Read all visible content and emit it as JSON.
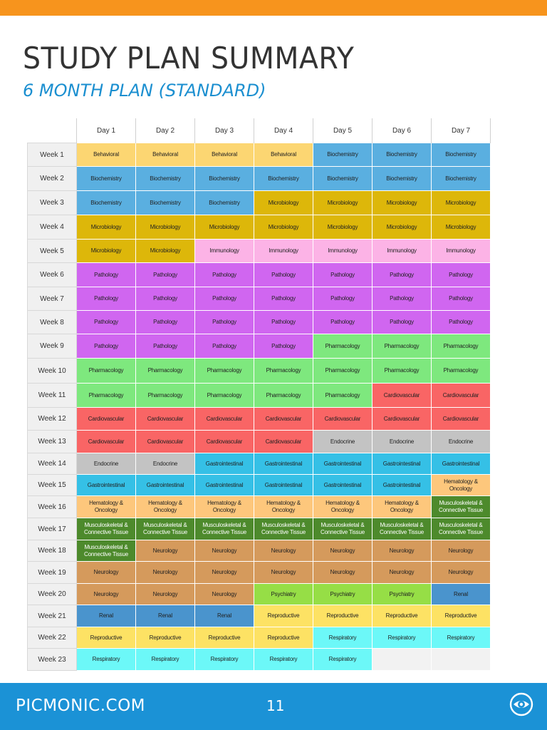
{
  "header": {
    "title": "STUDY PLAN SUMMARY",
    "subtitle": "6 MONTH PLAN (STANDARD)"
  },
  "table": {
    "columns": [
      "Day 1",
      "Day 2",
      "Day 3",
      "Day 4",
      "Day 5",
      "Day 6",
      "Day 7"
    ],
    "rows": [
      {
        "label": "Week 1",
        "cells": [
          "Behavioral",
          "Behavioral",
          "Behavioral",
          "Behavioral",
          "Biochemistry",
          "Biochemistry",
          "Biochemistry"
        ]
      },
      {
        "label": "Week 2",
        "cells": [
          "Biochemistry",
          "Biochemistry",
          "Biochemistry",
          "Biochemistry",
          "Biochemistry",
          "Biochemistry",
          "Biochemistry"
        ]
      },
      {
        "label": "Week 3",
        "cells": [
          "Biochemistry",
          "Biochemistry",
          "Biochemistry",
          "Microbiology",
          "Microbiology",
          "Microbiology",
          "Microbiology"
        ]
      },
      {
        "label": "Week 4",
        "cells": [
          "Microbiology",
          "Microbiology",
          "Microbiology",
          "Microbiology",
          "Microbiology",
          "Microbiology",
          "Microbiology"
        ]
      },
      {
        "label": "Week 5",
        "cells": [
          "Microbiology",
          "Microbiology",
          "Immunology",
          "Immunology",
          "Immunology",
          "Immunology",
          "Immunology"
        ]
      },
      {
        "label": "Week 6",
        "cells": [
          "Pathology",
          "Pathology",
          "Pathology",
          "Pathology",
          "Pathology",
          "Pathology",
          "Pathology"
        ]
      },
      {
        "label": "Week 7",
        "cells": [
          "Pathology",
          "Pathology",
          "Pathology",
          "Pathology",
          "Pathology",
          "Pathology",
          "Pathology"
        ]
      },
      {
        "label": "Week 8",
        "cells": [
          "Pathology",
          "Pathology",
          "Pathology",
          "Pathology",
          "Pathology",
          "Pathology",
          "Pathology"
        ]
      },
      {
        "label": "Week 9",
        "cells": [
          "Pathology",
          "Pathology",
          "Pathology",
          "Pathology",
          "Pharmacology",
          "Pharmacology",
          "Pharmacology"
        ]
      },
      {
        "label": "Week 10",
        "cells": [
          "Pharmacology",
          "Pharmacology",
          "Pharmacology",
          "Pharmacology",
          "Pharmacology",
          "Pharmacology",
          "Pharmacology"
        ]
      },
      {
        "label": "Week 11",
        "cells": [
          "Pharmacology",
          "Pharmacology",
          "Pharmacology",
          "Pharmacology",
          "Pharmacology",
          "Cardiovascular",
          "Cardiovascular"
        ]
      },
      {
        "label": "Week 12",
        "cells": [
          "Cardiovascular",
          "Cardiovascular",
          "Cardiovascular",
          "Cardiovascular",
          "Cardiovascular",
          "Cardiovascular",
          "Cardiovascular"
        ]
      },
      {
        "label": "Week 13",
        "cells": [
          "Cardiovascular",
          "Cardiovascular",
          "Cardiovascular",
          "Cardiovascular",
          "Endocrine",
          "Endocrine",
          "Endocrine"
        ]
      },
      {
        "label": "Week 14",
        "cells": [
          "Endocrine",
          "Endocrine",
          "Gastrointestinal",
          "Gastrointestinal",
          "Gastrointestinal",
          "Gastrointestinal",
          "Gastrointestinal"
        ]
      },
      {
        "label": "Week 15",
        "cells": [
          "Gastrointestinal",
          "Gastrointestinal",
          "Gastrointestinal",
          "Gastrointestinal",
          "Gastrointestinal",
          "Gastrointestinal",
          "Hematology & Oncology"
        ]
      },
      {
        "label": "Week 16",
        "cells": [
          "Hematology & Oncology",
          "Hematology & Oncology",
          "Hematology & Oncology",
          "Hematology & Oncology",
          "Hematology & Oncology",
          "Hematology & Oncology",
          "Musculoskeletal & Connective Tissue"
        ]
      },
      {
        "label": "Week 17",
        "cells": [
          "Musculoskeletal & Connective Tissue",
          "Musculoskeletal & Connective Tissue",
          "Musculoskeletal & Connective Tissue",
          "Musculoskeletal & Connective Tissue",
          "Musculoskeletal & Connective Tissue",
          "Musculoskeletal & Connective Tissue",
          "Musculoskeletal & Connective Tissue"
        ]
      },
      {
        "label": "Week 18",
        "cells": [
          "Musculoskeletal & Connective Tissue",
          "Neurology",
          "Neurology",
          "Neurology",
          "Neurology",
          "Neurology",
          "Neurology"
        ]
      },
      {
        "label": "Week 19",
        "cells": [
          "Neurology",
          "Neurology",
          "Neurology",
          "Neurology",
          "Neurology",
          "Neurology",
          "Neurology"
        ]
      },
      {
        "label": "Week 20",
        "cells": [
          "Neurology",
          "Neurology",
          "Neurology",
          "Psychiatry",
          "Psychiatry",
          "Psychiatry",
          "Renal"
        ]
      },
      {
        "label": "Week 21",
        "cells": [
          "Renal",
          "Renal",
          "Renal",
          "Reproductive",
          "Reproductive",
          "Reproductive",
          "Reproductive"
        ]
      },
      {
        "label": "Week 22",
        "cells": [
          "Reproductive",
          "Reproductive",
          "Reproductive",
          "Reproductive",
          "Respiratory",
          "Respiratory",
          "Respiratory"
        ]
      },
      {
        "label": "Week 23",
        "cells": [
          "Respiratory",
          "Respiratory",
          "Respiratory",
          "Respiratory",
          "Respiratory",
          "",
          ""
        ]
      }
    ]
  },
  "subject_colors": {
    "Behavioral": "#fcd672",
    "Biochemistry": "#5aafe0",
    "Microbiology": "#ddb70a",
    "Immunology": "#fcb3e6",
    "Pathology": "#d066f0",
    "Pharmacology": "#7ee87e",
    "Cardiovascular": "#f96565",
    "Endocrine": "#c3c3c3",
    "Gastrointestinal": "#35c0e6",
    "Hematology & Oncology": "#fdc77c",
    "Musculoskeletal & Connective Tissue": "#4d8a2c",
    "Neurology": "#d59a5c",
    "Psychiatry": "#96de46",
    "Renal": "#4a94cd",
    "Reproductive": "#fde264",
    "Respiratory": "#6cf8f8",
    "empty": "#f2f2f2"
  },
  "footer": {
    "brand": "PICMONIC.COM",
    "page_number": "11",
    "logo_icon": "picmonic-eye-icon"
  }
}
